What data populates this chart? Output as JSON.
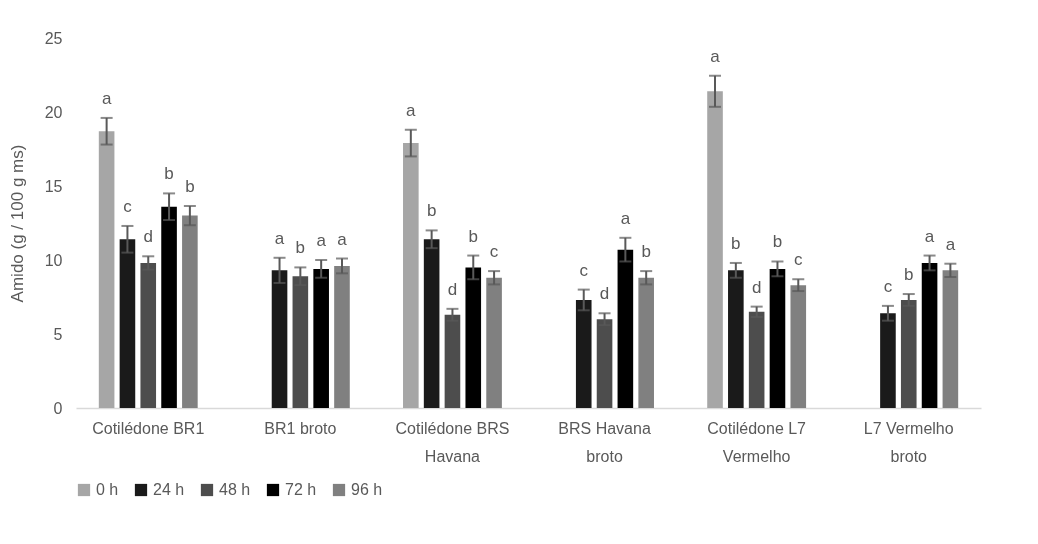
{
  "chart_data": {
    "type": "bar",
    "ylabel": "Amido (g / 100 g ms)",
    "categories": [
      "Cotilédone BR1",
      "BR1 broto",
      "Cotilédone BRS Havana",
      "BRS Havana broto",
      "Cotilédone L7 Vermelho",
      "L7 Vermelho broto"
    ],
    "series": [
      {
        "name": "0 h",
        "color": "#a6a6a6",
        "values": [
          18.7,
          null,
          17.9,
          null,
          21.4,
          null
        ],
        "errors": [
          0.9,
          null,
          0.9,
          null,
          1.05,
          null
        ],
        "value_labels": [
          "a",
          null,
          "a",
          null,
          "a",
          null
        ]
      },
      {
        "name": "24 h",
        "color": "#1a1a1a",
        "values": [
          11.4,
          9.3,
          11.4,
          7.3,
          9.3,
          6.4
        ],
        "errors": [
          0.9,
          0.85,
          0.6,
          0.7,
          0.5,
          0.5
        ],
        "value_labels": [
          "c",
          "a",
          "b",
          "c",
          "b",
          "c"
        ]
      },
      {
        "name": "48 h",
        "color": "#4d4d4d",
        "values": [
          9.8,
          8.9,
          6.3,
          6.0,
          6.5,
          7.3
        ],
        "errors": [
          0.45,
          0.6,
          0.4,
          0.4,
          0.35,
          0.4
        ],
        "value_labels": [
          "d",
          "b",
          "d",
          "d",
          "d",
          "b"
        ]
      },
      {
        "name": "72 h",
        "color": "#000000",
        "values": [
          13.6,
          9.4,
          9.5,
          10.7,
          9.4,
          9.8
        ],
        "errors": [
          0.9,
          0.6,
          0.8,
          0.8,
          0.5,
          0.5
        ],
        "value_labels": [
          "b",
          "a",
          "b",
          "a",
          "b",
          "a"
        ]
      },
      {
        "name": "96 h",
        "color": "#808080",
        "values": [
          13.0,
          9.6,
          8.8,
          8.8,
          8.3,
          9.3
        ],
        "errors": [
          0.65,
          0.5,
          0.45,
          0.45,
          0.4,
          0.45
        ],
        "value_labels": [
          "b",
          "a",
          "c",
          "b",
          "c",
          "a"
        ]
      }
    ],
    "ylim": [
      0,
      25
    ],
    "yticks": [
      0,
      5,
      10,
      15,
      20,
      25
    ],
    "grid": false,
    "legend": "bottom"
  }
}
